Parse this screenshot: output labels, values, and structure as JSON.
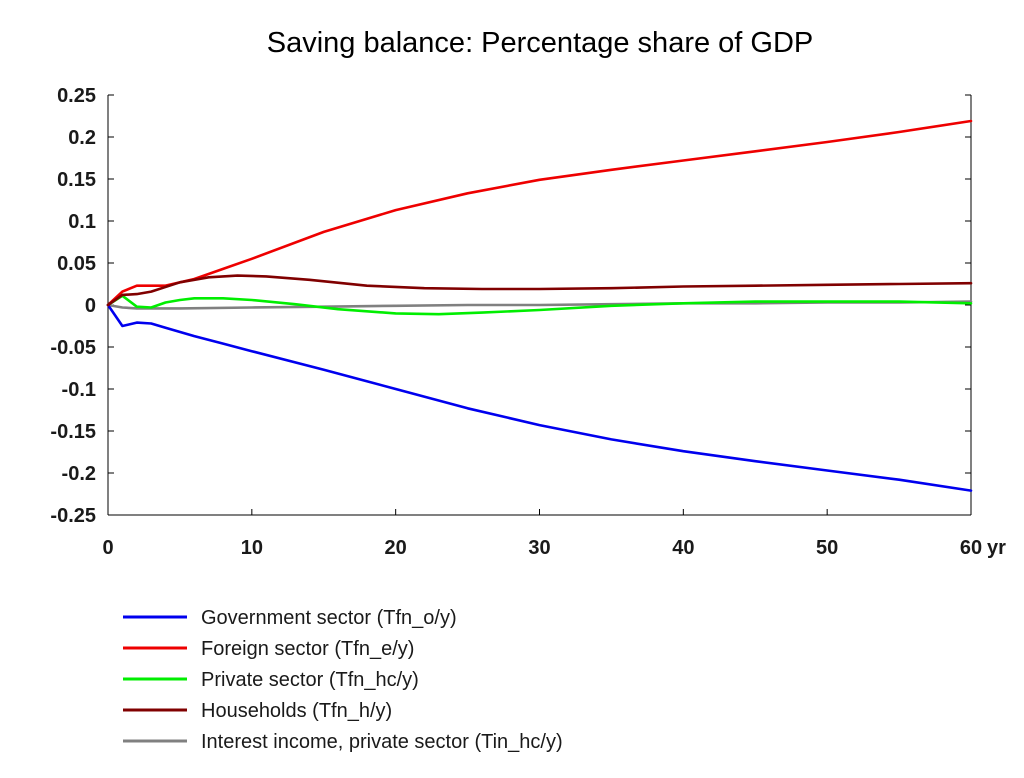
{
  "chart_data": {
    "type": "line",
    "title": "Saving balance: Percentage share of GDP",
    "x_unit": "yr",
    "xlim": [
      0,
      60
    ],
    "ylim": [
      -0.25,
      0.25
    ],
    "x_ticks": [
      0,
      10,
      20,
      30,
      40,
      50,
      60
    ],
    "x_tick_labels": [
      "0",
      "10",
      "20",
      "30",
      "40",
      "50",
      "60"
    ],
    "y_ticks": [
      0.25,
      0.2,
      0.15,
      0.1,
      0.05,
      0,
      -0.05,
      -0.1,
      -0.15,
      -0.2,
      -0.25
    ],
    "y_tick_labels": [
      "0.25",
      "0.2",
      "0.15",
      "0.1",
      "0.05",
      "0",
      "-0.05",
      "-0.1",
      "-0.15",
      "-0.2",
      "-0.25"
    ],
    "grid": false,
    "legend_position": "bottom",
    "series": [
      {
        "name": "Government sector (Tfn_o/y)",
        "color": "#0000ee",
        "x": [
          0,
          1,
          2,
          3,
          4,
          6,
          8,
          10,
          15,
          20,
          25,
          30,
          35,
          40,
          45,
          50,
          55,
          60
        ],
        "y": [
          0,
          -0.025,
          -0.021,
          -0.022,
          -0.027,
          -0.037,
          -0.046,
          -0.055,
          -0.077,
          -0.1,
          -0.123,
          -0.143,
          -0.16,
          -0.174,
          -0.186,
          -0.197,
          -0.208,
          -0.221
        ]
      },
      {
        "name": "Foreign sector (Tfn_e/y)",
        "color": "#ee0000",
        "x": [
          0,
          1,
          2,
          3,
          4,
          6,
          8,
          10,
          15,
          20,
          25,
          30,
          35,
          40,
          45,
          50,
          55,
          60
        ],
        "y": [
          0,
          0.016,
          0.023,
          0.023,
          0.023,
          0.031,
          0.043,
          0.055,
          0.087,
          0.113,
          0.133,
          0.149,
          0.161,
          0.172,
          0.183,
          0.194,
          0.206,
          0.219
        ]
      },
      {
        "name": "Private sector (Tfn_hc/y)",
        "color": "#00ee00",
        "x": [
          0,
          1,
          2,
          3,
          4,
          5,
          6,
          8,
          10,
          13,
          16,
          20,
          23,
          26,
          30,
          35,
          40,
          45,
          50,
          55,
          60
        ],
        "y": [
          0,
          0.011,
          -0.002,
          -0.003,
          0.003,
          0.006,
          0.008,
          0.008,
          0.006,
          0.001,
          -0.005,
          -0.01,
          -0.011,
          -0.009,
          -0.006,
          -0.001,
          0.002,
          0.004,
          0.004,
          0.004,
          0.002
        ]
      },
      {
        "name": "Households (Tfn_h/y)",
        "color": "#800000",
        "x": [
          0,
          1,
          2,
          3,
          5,
          7,
          9,
          11,
          14,
          18,
          22,
          26,
          30,
          35,
          40,
          45,
          50,
          55,
          60
        ],
        "y": [
          0,
          0.012,
          0.013,
          0.016,
          0.027,
          0.033,
          0.035,
          0.034,
          0.03,
          0.023,
          0.02,
          0.019,
          0.019,
          0.02,
          0.022,
          0.023,
          0.024,
          0.025,
          0.026
        ]
      },
      {
        "name": "Interest income, private sector (Tin_hc/y)",
        "color": "#808080",
        "x": [
          0,
          1,
          2,
          3,
          5,
          10,
          15,
          20,
          25,
          30,
          35,
          40,
          45,
          50,
          55,
          60
        ],
        "y": [
          0,
          -0.003,
          -0.004,
          -0.004,
          -0.004,
          -0.003,
          -0.002,
          -0.001,
          0.0,
          0.0,
          0.001,
          0.002,
          0.002,
          0.003,
          0.003,
          0.004
        ]
      }
    ]
  }
}
